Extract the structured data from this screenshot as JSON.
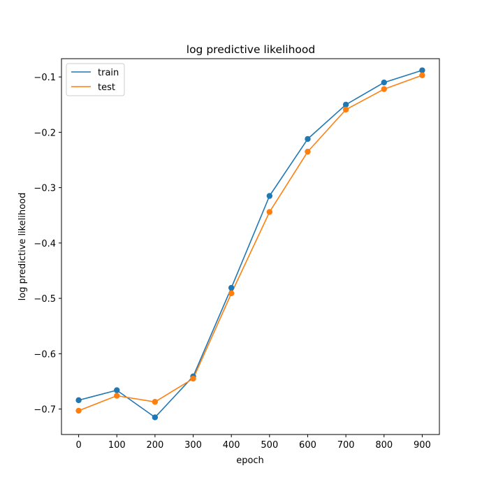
{
  "chart_data": {
    "type": "line",
    "title": "log predictive likelihood",
    "xlabel": "epoch",
    "ylabel": "log predictive likelihood",
    "x": [
      0,
      100,
      200,
      300,
      400,
      500,
      600,
      700,
      800,
      900
    ],
    "xticks": [
      0,
      100,
      200,
      300,
      400,
      500,
      600,
      700,
      800,
      900
    ],
    "yticks": [
      -0.7,
      -0.6,
      -0.5,
      -0.4,
      -0.3,
      -0.2,
      -0.1
    ],
    "xlim": [
      -45,
      945
    ],
    "ylim": [
      -0.746,
      -0.067
    ],
    "grid": false,
    "legend_position": "top-left",
    "markers": true,
    "series": [
      {
        "name": "train",
        "color": "#1f77b4",
        "values": [
          -0.684,
          -0.666,
          -0.715,
          -0.641,
          -0.481,
          -0.315,
          -0.212,
          -0.15,
          -0.11,
          -0.088
        ]
      },
      {
        "name": "test",
        "color": "#ff7f0e",
        "values": [
          -0.703,
          -0.676,
          -0.687,
          -0.645,
          -0.491,
          -0.344,
          -0.235,
          -0.159,
          -0.122,
          -0.097
        ]
      }
    ]
  }
}
